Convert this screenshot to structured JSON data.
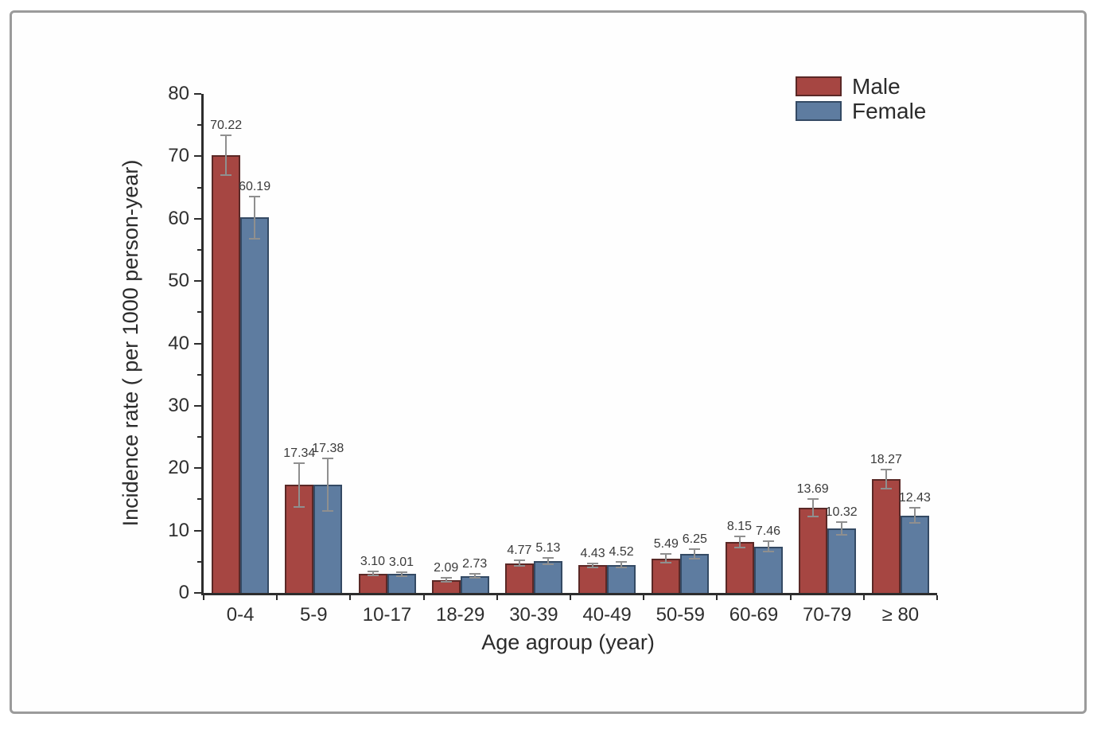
{
  "chart_data": {
    "type": "bar",
    "title": "",
    "xlabel": "Age agroup (year)",
    "ylabel": "Incidence rate  ( per 1000 person-year)",
    "categories": [
      "0-4",
      "5-9",
      "10-17",
      "18-29",
      "30-39",
      "40-49",
      "50-59",
      "60-69",
      "70-79",
      "≥ 80"
    ],
    "series": [
      {
        "name": "Male",
        "color": "#a64642",
        "border_color": "#5a2826",
        "values": [
          70.22,
          17.34,
          3.1,
          2.09,
          4.77,
          4.43,
          5.49,
          8.15,
          13.69,
          18.27
        ],
        "labels": [
          "70.22",
          "17.34",
          "3.10",
          "2.09",
          "4.77",
          "4.43",
          "5.49",
          "8.15",
          "13.69",
          "18.27"
        ],
        "errors": [
          3.2,
          3.5,
          0.35,
          0.3,
          0.45,
          0.35,
          0.7,
          0.9,
          1.4,
          1.5
        ]
      },
      {
        "name": "Female",
        "color": "#5e7ca0",
        "border_color": "#344a64",
        "values": [
          60.19,
          17.38,
          3.01,
          2.73,
          5.13,
          4.52,
          6.25,
          7.46,
          10.32,
          12.43
        ],
        "labels": [
          "60.19",
          "17.38",
          "3.01",
          "2.73",
          "5.13",
          "4.52",
          "6.25",
          "7.46",
          "10.32",
          "12.43"
        ],
        "errors": [
          3.4,
          4.2,
          0.35,
          0.35,
          0.5,
          0.4,
          0.75,
          0.8,
          1.0,
          1.2
        ]
      }
    ],
    "y_tick_labels": [
      "0",
      "10",
      "20",
      "30",
      "40",
      "50",
      "60",
      "70",
      "80"
    ],
    "ylim": [
      0,
      80
    ],
    "y_major_step": 10,
    "y_minor_step": 5,
    "grid": false,
    "error_bars": true,
    "legend_position": "top-right"
  }
}
